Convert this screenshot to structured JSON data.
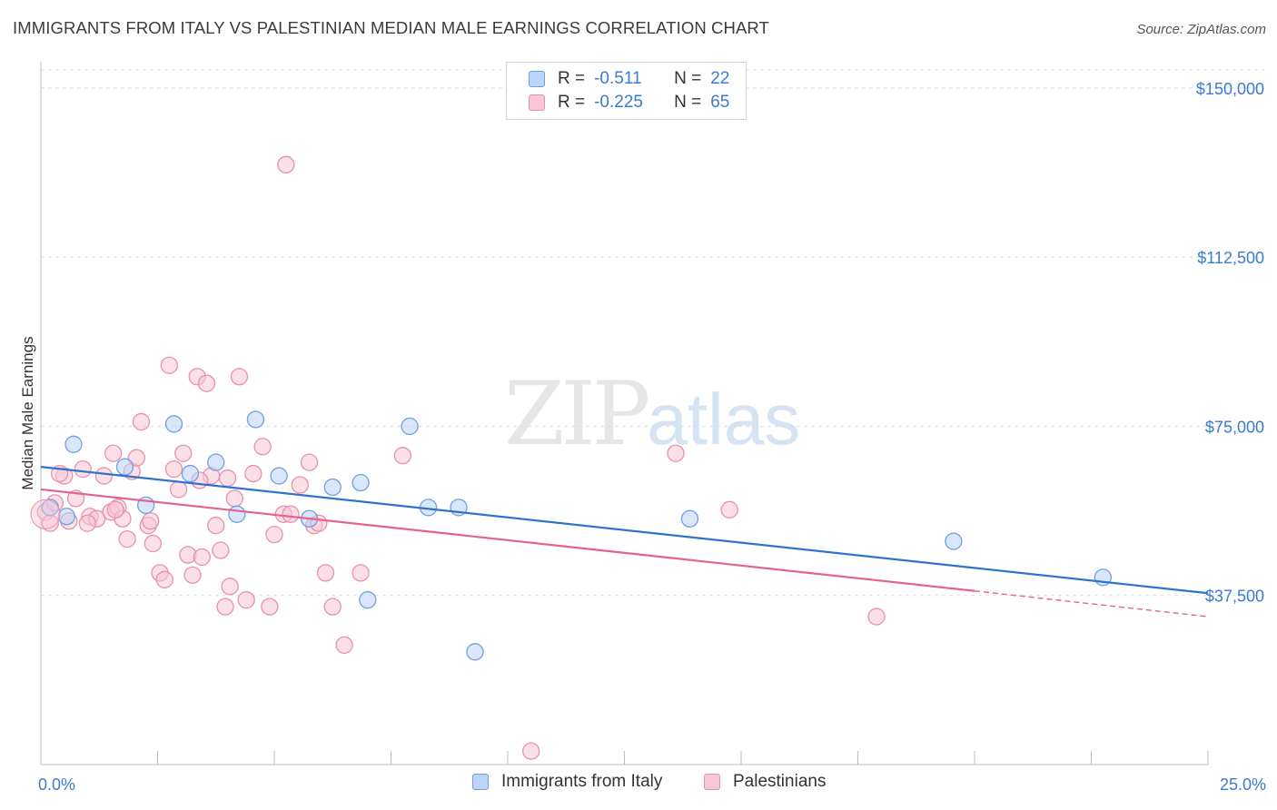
{
  "title": "IMMIGRANTS FROM ITALY VS PALESTINIAN MEDIAN MALE EARNINGS CORRELATION CHART",
  "source": "Source: ZipAtlas.com",
  "watermark": {
    "zip": "ZIP",
    "atlas": "atlas"
  },
  "legend": {
    "rows": [
      {
        "r_label": "R =",
        "r_value": "-0.511",
        "n_label": "N =",
        "n_value": "22"
      },
      {
        "r_label": "R =",
        "r_value": "-0.225",
        "n_label": "N =",
        "n_value": "65"
      }
    ]
  },
  "colors": {
    "italy_fill": "#bcd4f5",
    "italy_stroke": "#6f9fe0",
    "italy_line": "#2f72d0",
    "pal_fill": "#f8c6d6",
    "pal_stroke": "#e890ad",
    "pal_line": "#e5628e",
    "grid": "#dcdcdc"
  },
  "chart_data": {
    "type": "scatter",
    "xlabel": "",
    "ylabel": "Median Male Earnings",
    "xlim": [
      0,
      25
    ],
    "ylim": [
      0,
      155000
    ],
    "x_tick_labels": [
      "0.0%",
      "25.0%"
    ],
    "y_ticks": [
      37500,
      75000,
      112500,
      150000
    ],
    "y_tick_labels": [
      "$37,500",
      "$75,000",
      "$112,500",
      "$150,000"
    ],
    "grid": true,
    "legend_position": "top-center",
    "series": [
      {
        "name": "Immigrants from Italy",
        "r": -0.511,
        "n": 22,
        "trend": {
          "x": [
            0,
            25
          ],
          "y": [
            66000,
            38000
          ]
        },
        "points": [
          [
            0.2,
            57000
          ],
          [
            0.7,
            71000
          ],
          [
            1.8,
            66000
          ],
          [
            2.25,
            57500
          ],
          [
            2.85,
            75500
          ],
          [
            3.2,
            64500
          ],
          [
            3.75,
            67000
          ],
          [
            4.2,
            55500
          ],
          [
            4.6,
            76500
          ],
          [
            5.1,
            64000
          ],
          [
            5.75,
            54500
          ],
          [
            6.25,
            61500
          ],
          [
            6.85,
            62500
          ],
          [
            7.0,
            36500
          ],
          [
            7.9,
            75000
          ],
          [
            8.3,
            57000
          ],
          [
            8.95,
            57000
          ],
          [
            9.3,
            25000
          ],
          [
            13.9,
            54500
          ],
          [
            19.55,
            49500
          ],
          [
            22.75,
            41500
          ],
          [
            0.55,
            55000
          ]
        ]
      },
      {
        "name": "Palestinians",
        "r": -0.225,
        "n": 65,
        "trend": {
          "x": [
            0,
            20
          ],
          "y": [
            61000,
            38500
          ]
        },
        "trend_dashed": {
          "x": [
            20,
            25
          ],
          "y": [
            38500,
            32800
          ]
        },
        "points": [
          [
            0.1,
            56000
          ],
          [
            0.3,
            58000
          ],
          [
            0.5,
            64000
          ],
          [
            0.6,
            54000
          ],
          [
            0.75,
            59000
          ],
          [
            0.9,
            65500
          ],
          [
            1.05,
            55000
          ],
          [
            1.2,
            54500
          ],
          [
            1.35,
            64000
          ],
          [
            1.5,
            56000
          ],
          [
            1.55,
            69000
          ],
          [
            1.65,
            57000
          ],
          [
            1.75,
            54500
          ],
          [
            1.85,
            50000
          ],
          [
            1.95,
            65000
          ],
          [
            2.05,
            68000
          ],
          [
            2.15,
            76000
          ],
          [
            2.3,
            53000
          ],
          [
            2.4,
            49000
          ],
          [
            2.55,
            42500
          ],
          [
            2.65,
            41000
          ],
          [
            2.75,
            88500
          ],
          [
            2.85,
            65500
          ],
          [
            2.95,
            61000
          ],
          [
            3.05,
            69000
          ],
          [
            3.15,
            46500
          ],
          [
            3.25,
            42000
          ],
          [
            3.35,
            86000
          ],
          [
            3.45,
            46000
          ],
          [
            3.55,
            84500
          ],
          [
            3.65,
            64000
          ],
          [
            3.75,
            53000
          ],
          [
            3.85,
            47500
          ],
          [
            3.95,
            35000
          ],
          [
            4.05,
            39500
          ],
          [
            4.15,
            59000
          ],
          [
            4.25,
            86000
          ],
          [
            4.4,
            36500
          ],
          [
            4.55,
            64500
          ],
          [
            4.75,
            70500
          ],
          [
            4.9,
            35000
          ],
          [
            5.0,
            51000
          ],
          [
            5.2,
            55500
          ],
          [
            5.35,
            55500
          ],
          [
            5.55,
            62000
          ],
          [
            5.75,
            67000
          ],
          [
            5.85,
            53000
          ],
          [
            5.95,
            53500
          ],
          [
            6.1,
            42500
          ],
          [
            6.25,
            35000
          ],
          [
            6.5,
            26500
          ],
          [
            6.85,
            42500
          ],
          [
            7.75,
            68500
          ],
          [
            10.5,
            3000
          ],
          [
            13.6,
            69000
          ],
          [
            14.75,
            56500
          ],
          [
            17.9,
            32800
          ],
          [
            0.2,
            53500
          ],
          [
            0.4,
            64500
          ],
          [
            1.0,
            53500
          ],
          [
            1.6,
            56500
          ],
          [
            2.35,
            54000
          ],
          [
            3.4,
            63000
          ],
          [
            4.0,
            63500
          ],
          [
            5.25,
            133000
          ]
        ]
      }
    ]
  }
}
